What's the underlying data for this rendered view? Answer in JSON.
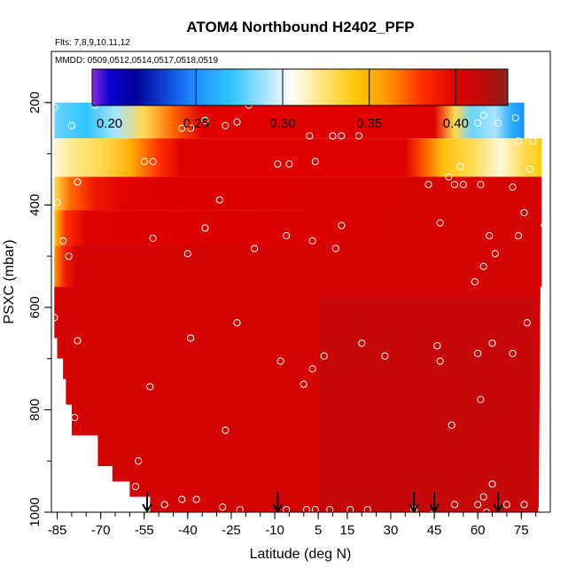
{
  "chart_data": {
    "type": "heatmap",
    "title": "ATOM4 Northbound H2402_PFP",
    "flights_label": "Flts: 7,8,9,10,11,12",
    "dates_label": "MMDD: 0509,0512,0514,0517,0518,0519",
    "xlabel": "Latitude (deg N)",
    "ylabel": "PSXC (mbar)",
    "xlim": [
      -87,
      85
    ],
    "ylim": [
      1000,
      100
    ],
    "x_ticks": [
      -85,
      -70,
      -55,
      -40,
      -25,
      -10,
      5,
      15,
      30,
      45,
      60,
      75
    ],
    "x_ticks_labeled": [
      "-85",
      "-70",
      "-55",
      "-40",
      "-25",
      "-10",
      "5",
      "15",
      "30",
      "45",
      "60",
      "75"
    ],
    "y_ticks": [
      200,
      400,
      600,
      800,
      1000
    ],
    "y_ticks_labeled": [
      "200",
      "400",
      "600",
      "800",
      "1000"
    ],
    "colorbar": {
      "range": [
        0.19,
        0.43
      ],
      "ticks": [
        0.2,
        0.25,
        0.3,
        0.35,
        0.4
      ],
      "tick_labels": [
        "0.20",
        "0.25",
        "0.30",
        "0.35",
        "0.40"
      ],
      "stops": [
        {
          "v": 0.19,
          "color": "#8a2be2"
        },
        {
          "v": 0.2,
          "color": "#0a00d0"
        },
        {
          "v": 0.215,
          "color": "#00009a"
        },
        {
          "v": 0.235,
          "color": "#1050e0"
        },
        {
          "v": 0.25,
          "color": "#1e90ff"
        },
        {
          "v": 0.27,
          "color": "#2ec4ff"
        },
        {
          "v": 0.29,
          "color": "#a8e4ff"
        },
        {
          "v": 0.305,
          "color": "#ffffff"
        },
        {
          "v": 0.32,
          "color": "#ffe890"
        },
        {
          "v": 0.34,
          "color": "#ffcc10"
        },
        {
          "v": 0.36,
          "color": "#ff9800"
        },
        {
          "v": 0.38,
          "color": "#ff3000"
        },
        {
          "v": 0.4,
          "color": "#e00000"
        },
        {
          "v": 0.42,
          "color": "#b01010"
        },
        {
          "v": 0.43,
          "color": "#8b2222"
        }
      ]
    },
    "background_value": 0.405,
    "grid": false,
    "field_bands": [
      {
        "p_top": 160,
        "p_bottom": 200,
        "x_start": -73,
        "x_end": 52,
        "values": [
          {
            "x": -73,
            "v": 0.25
          },
          {
            "x": -60,
            "v": 0.27
          },
          {
            "x": -50,
            "v": 0.3
          },
          {
            "x": -40,
            "v": 0.32
          },
          {
            "x": -30,
            "v": 0.345
          },
          {
            "x": -15,
            "v": 0.36
          },
          {
            "x": 0,
            "v": 0.35
          },
          {
            "x": 15,
            "v": 0.34
          },
          {
            "x": 30,
            "v": 0.31
          },
          {
            "x": 40,
            "v": 0.27
          },
          {
            "x": 47,
            "v": 0.22
          },
          {
            "x": 52,
            "v": 0.2
          }
        ]
      },
      {
        "p_top": 200,
        "p_bottom": 270,
        "x_start": -86,
        "x_end": 76,
        "values": [
          {
            "x": -86,
            "v": 0.28
          },
          {
            "x": -75,
            "v": 0.27
          },
          {
            "x": -65,
            "v": 0.29
          },
          {
            "x": -55,
            "v": 0.33
          },
          {
            "x": -45,
            "v": 0.37
          },
          {
            "x": -35,
            "v": 0.4
          },
          {
            "x": 45,
            "v": 0.4
          },
          {
            "x": 52,
            "v": 0.33
          },
          {
            "x": 58,
            "v": 0.28
          },
          {
            "x": 66,
            "v": 0.29
          },
          {
            "x": 72,
            "v": 0.26
          },
          {
            "x": 76,
            "v": 0.25
          }
        ]
      },
      {
        "p_top": 270,
        "p_bottom": 345,
        "x_start": -86,
        "x_end": 82,
        "values": [
          {
            "x": -86,
            "v": 0.31
          },
          {
            "x": -80,
            "v": 0.32
          },
          {
            "x": -70,
            "v": 0.33
          },
          {
            "x": -60,
            "v": 0.35
          },
          {
            "x": -50,
            "v": 0.38
          },
          {
            "x": -42,
            "v": 0.4
          },
          {
            "x": 35,
            "v": 0.4
          },
          {
            "x": 42,
            "v": 0.37
          },
          {
            "x": 48,
            "v": 0.345
          },
          {
            "x": 58,
            "v": 0.33
          },
          {
            "x": 68,
            "v": 0.31
          },
          {
            "x": 76,
            "v": 0.33
          },
          {
            "x": 82,
            "v": 0.34
          }
        ]
      },
      {
        "p_top": 345,
        "p_bottom": 410,
        "x_start": -86,
        "x_end": 82,
        "values": [
          {
            "x": -86,
            "v": 0.33
          },
          {
            "x": -80,
            "v": 0.37
          },
          {
            "x": -72,
            "v": 0.39
          },
          {
            "x": -62,
            "v": 0.4
          },
          {
            "x": 82,
            "v": 0.405
          }
        ]
      },
      {
        "p_top": 410,
        "p_bottom": 480,
        "x_start": -86,
        "x_end": 82,
        "values": [
          {
            "x": -86,
            "v": 0.34
          },
          {
            "x": -82,
            "v": 0.38
          },
          {
            "x": -75,
            "v": 0.4
          },
          {
            "x": 82,
            "v": 0.405
          }
        ]
      },
      {
        "p_top": 480,
        "p_bottom": 560,
        "x_start": -86,
        "x_end": 82,
        "values": [
          {
            "x": -86,
            "v": 0.36
          },
          {
            "x": -82,
            "v": 0.39
          },
          {
            "x": -78,
            "v": 0.405
          },
          {
            "x": 82,
            "v": 0.405
          }
        ]
      }
    ],
    "darker_patch": {
      "x_start": 5,
      "x_end": 80,
      "p_top": 580,
      "p_bottom": 1000,
      "value": 0.415
    },
    "empty_region_steps": [
      {
        "p": 660,
        "x": -86
      },
      {
        "p": 700,
        "x": -85
      },
      {
        "p": 740,
        "x": -83
      },
      {
        "p": 790,
        "x": -82
      },
      {
        "p": 850,
        "x": -80
      },
      {
        "p": 910,
        "x": -71
      },
      {
        "p": 940,
        "x": -66
      },
      {
        "p": 970,
        "x": -60
      },
      {
        "p": 1000,
        "x": -53
      }
    ],
    "right_edge": [
      {
        "p": 270,
        "x": 82
      },
      {
        "p": 1000,
        "x": 81
      }
    ],
    "profile_arrows_lat": [
      -54,
      -9,
      38,
      45,
      67
    ],
    "observations": [
      {
        "x": -86,
        "p": 210
      },
      {
        "x": -80,
        "p": 245
      },
      {
        "x": -72,
        "p": 205
      },
      {
        "x": -78,
        "p": 355
      },
      {
        "x": -85,
        "p": 395
      },
      {
        "x": -83,
        "p": 470
      },
      {
        "x": -81,
        "p": 500
      },
      {
        "x": -86,
        "p": 620
      },
      {
        "x": -78,
        "p": 665
      },
      {
        "x": -79,
        "p": 815
      },
      {
        "x": -55,
        "p": 315
      },
      {
        "x": -52,
        "p": 315
      },
      {
        "x": -52,
        "p": 465
      },
      {
        "x": -39,
        "p": 250
      },
      {
        "x": -34,
        "p": 235
      },
      {
        "x": -42,
        "p": 250
      },
      {
        "x": -23,
        "p": 238
      },
      {
        "x": -19,
        "p": 205
      },
      {
        "x": -40,
        "p": 495
      },
      {
        "x": -34,
        "p": 445
      },
      {
        "x": -29,
        "p": 390
      },
      {
        "x": -17,
        "p": 485
      },
      {
        "x": -39,
        "p": 660
      },
      {
        "x": -23,
        "p": 630
      },
      {
        "x": -53,
        "p": 755
      },
      {
        "x": -27,
        "p": 840
      },
      {
        "x": -57,
        "p": 900
      },
      {
        "x": -58,
        "p": 950
      },
      {
        "x": -54,
        "p": 990
      },
      {
        "x": -48,
        "p": 985
      },
      {
        "x": -42,
        "p": 975
      },
      {
        "x": -37,
        "p": 975
      },
      {
        "x": -28,
        "p": 990
      },
      {
        "x": -22,
        "p": 995
      },
      {
        "x": -9,
        "p": 320
      },
      {
        "x": -6,
        "p": 460
      },
      {
        "x": -8,
        "p": 705
      },
      {
        "x": -5,
        "p": 320
      },
      {
        "x": 2,
        "p": 265
      },
      {
        "x": 4,
        "p": 315
      },
      {
        "x": 10,
        "p": 265
      },
      {
        "x": 13,
        "p": 265
      },
      {
        "x": 19,
        "p": 265
      },
      {
        "x": 3,
        "p": 470
      },
      {
        "x": 11,
        "p": 485
      },
      {
        "x": 13,
        "p": 440
      },
      {
        "x": 7,
        "p": 695
      },
      {
        "x": 3,
        "p": 720
      },
      {
        "x": 0,
        "p": 750
      },
      {
        "x": -6,
        "p": 995
      },
      {
        "x": 1,
        "p": 995
      },
      {
        "x": 4,
        "p": 995
      },
      {
        "x": 9,
        "p": 995
      },
      {
        "x": 16,
        "p": 995
      },
      {
        "x": 22,
        "p": 995
      },
      {
        "x": 20,
        "p": 670
      },
      {
        "x": 28,
        "p": 695
      },
      {
        "x": 38,
        "p": 995
      },
      {
        "x": 43,
        "p": 360
      },
      {
        "x": 47,
        "p": 435
      },
      {
        "x": 46,
        "p": 675
      },
      {
        "x": 47,
        "p": 705
      },
      {
        "x": 52,
        "p": 360
      },
      {
        "x": 55,
        "p": 360
      },
      {
        "x": 54,
        "p": 325
      },
      {
        "x": 61,
        "p": 360
      },
      {
        "x": 64,
        "p": 460
      },
      {
        "x": 66,
        "p": 495
      },
      {
        "x": 62,
        "p": 520
      },
      {
        "x": 59,
        "p": 550
      },
      {
        "x": 51,
        "p": 830
      },
      {
        "x": 61,
        "p": 780
      },
      {
        "x": 60,
        "p": 690
      },
      {
        "x": 65,
        "p": 670
      },
      {
        "x": 72,
        "p": 690
      },
      {
        "x": 77,
        "p": 630
      },
      {
        "x": 74,
        "p": 460
      },
      {
        "x": 78,
        "p": 330
      },
      {
        "x": 83,
        "p": 440
      },
      {
        "x": 79,
        "p": 275
      },
      {
        "x": 74,
        "p": 275
      },
      {
        "x": 60,
        "p": 240
      },
      {
        "x": 67,
        "p": 240
      },
      {
        "x": 73,
        "p": 230
      },
      {
        "x": 44,
        "p": 1005
      },
      {
        "x": 52,
        "p": 985
      },
      {
        "x": 60,
        "p": 985
      },
      {
        "x": 62,
        "p": 970
      },
      {
        "x": 65,
        "p": 945
      },
      {
        "x": 70,
        "p": 985
      },
      {
        "x": 76,
        "p": 985
      },
      {
        "x": 82,
        "p": 995
      },
      {
        "x": 63,
        "p": 1000
      },
      {
        "x": 47,
        "p": 200
      },
      {
        "x": 51,
        "p": 200
      },
      {
        "x": 62,
        "p": 225
      },
      {
        "x": -27,
        "p": 245
      },
      {
        "x": 50,
        "p": 345
      },
      {
        "x": 76,
        "p": 415
      },
      {
        "x": 72,
        "p": 365
      }
    ]
  }
}
